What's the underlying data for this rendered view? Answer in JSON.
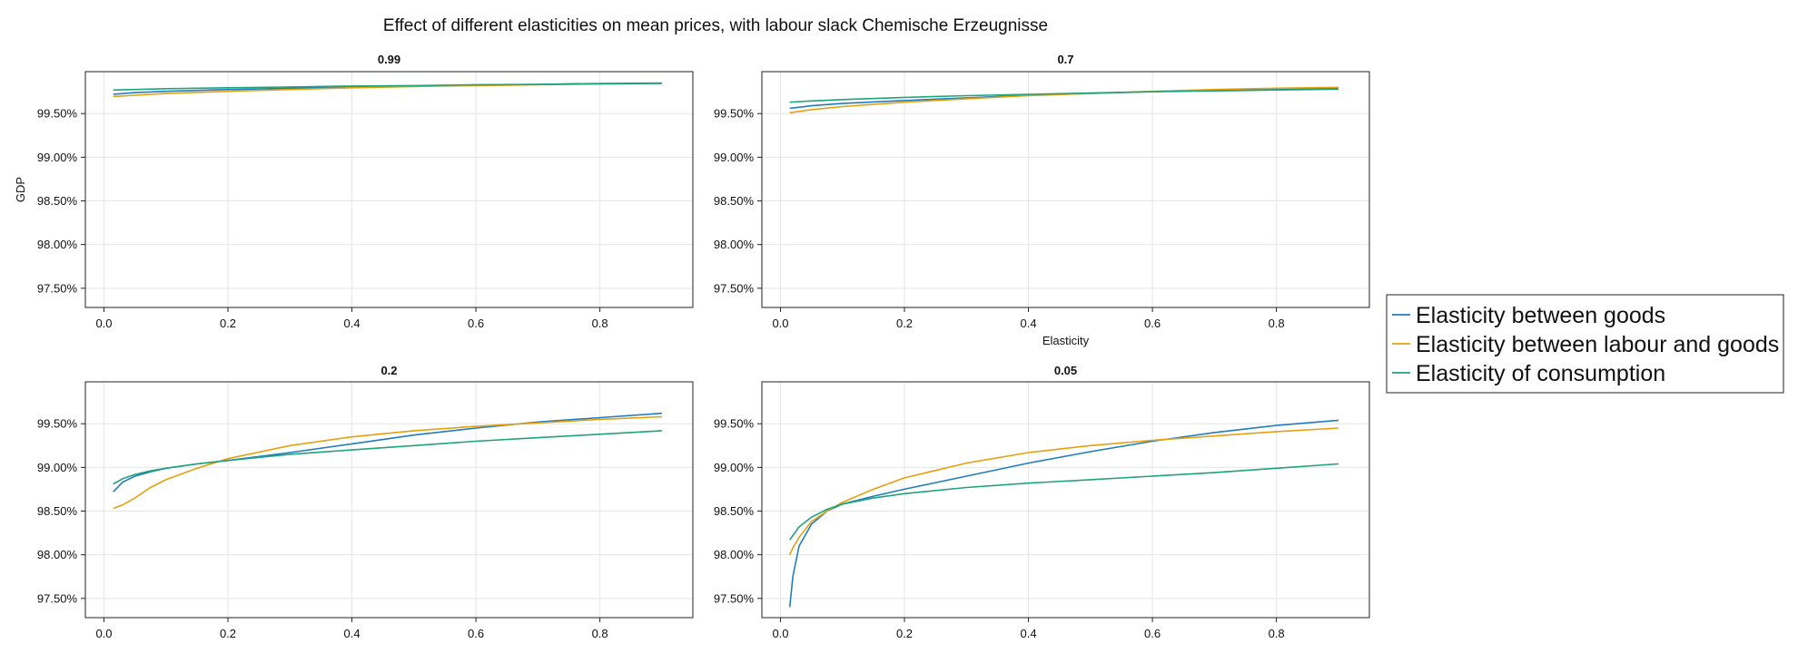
{
  "title": "Effect of different elasticities on mean prices, with labour slack Chemische Erzeugnisse",
  "colors": {
    "Elasticity between goods": "#1f7dbf",
    "Elasticity between labour and goods": "#e6a00f",
    "Elasticity of consumption": "#1fa37a"
  },
  "legend": {
    "position": "right",
    "entries": [
      "Elasticity between goods",
      "Elasticity between labour and goods",
      "Elasticity of consumption"
    ]
  },
  "chart_data": [
    {
      "type": "line",
      "title": "0.99",
      "xlabel": "",
      "ylabel": "GDP",
      "xlim": [
        -0.03,
        0.95
      ],
      "ylim": [
        97.28,
        99.98
      ],
      "xticks": [
        0.0,
        0.2,
        0.4,
        0.6,
        0.8
      ],
      "yticks": [
        97.5,
        98.0,
        98.5,
        99.0,
        99.5
      ],
      "yticklabels": [
        "97.50%",
        "98.00%",
        "98.50%",
        "99.00%",
        "99.50%"
      ],
      "grid": true,
      "x": [
        0.015,
        0.05,
        0.1,
        0.2,
        0.3,
        0.4,
        0.5,
        0.6,
        0.7,
        0.8,
        0.9
      ],
      "series": [
        {
          "name": "Elasticity between goods",
          "values": [
            99.72,
            99.74,
            99.755,
            99.775,
            99.79,
            99.805,
            99.815,
            99.825,
            99.835,
            99.845,
            99.85
          ]
        },
        {
          "name": "Elasticity between labour and goods",
          "values": [
            99.695,
            99.71,
            99.73,
            99.755,
            99.775,
            99.795,
            99.81,
            99.82,
            99.83,
            99.84,
            99.845
          ]
        },
        {
          "name": "Elasticity of consumption",
          "values": [
            99.77,
            99.775,
            99.785,
            99.795,
            99.805,
            99.815,
            99.82,
            99.83,
            99.835,
            99.84,
            99.845
          ]
        }
      ]
    },
    {
      "type": "line",
      "title": "0.7",
      "xlabel": "Elasticity",
      "ylabel": "",
      "xlim": [
        -0.03,
        0.95
      ],
      "ylim": [
        97.28,
        99.98
      ],
      "xticks": [
        0.0,
        0.2,
        0.4,
        0.6,
        0.8
      ],
      "yticks": [
        97.5,
        98.0,
        98.5,
        99.0,
        99.5
      ],
      "yticklabels": [
        "97.50%",
        "98.00%",
        "98.50%",
        "99.00%",
        "99.50%"
      ],
      "grid": true,
      "x": [
        0.015,
        0.05,
        0.1,
        0.2,
        0.3,
        0.4,
        0.5,
        0.6,
        0.7,
        0.8,
        0.9
      ],
      "series": [
        {
          "name": "Elasticity between goods",
          "values": [
            99.56,
            99.59,
            99.615,
            99.65,
            99.68,
            99.71,
            99.73,
            99.75,
            99.765,
            99.78,
            99.79
          ]
        },
        {
          "name": "Elasticity between labour and goods",
          "values": [
            99.51,
            99.545,
            99.58,
            99.63,
            99.67,
            99.705,
            99.73,
            99.755,
            99.775,
            99.79,
            99.8
          ]
        },
        {
          "name": "Elasticity of consumption",
          "values": [
            99.63,
            99.645,
            99.66,
            99.685,
            99.705,
            99.72,
            99.735,
            99.75,
            99.76,
            99.77,
            99.78
          ]
        }
      ]
    },
    {
      "type": "line",
      "title": "0.2",
      "xlabel": "",
      "ylabel": "",
      "xlim": [
        -0.03,
        0.95
      ],
      "ylim": [
        97.28,
        99.98
      ],
      "xticks": [
        0.0,
        0.2,
        0.4,
        0.6,
        0.8
      ],
      "yticks": [
        97.5,
        98.0,
        98.5,
        99.0,
        99.5
      ],
      "yticklabels": [
        "97.50%",
        "98.00%",
        "98.50%",
        "99.00%",
        "99.50%"
      ],
      "grid": true,
      "x": [
        0.015,
        0.03,
        0.05,
        0.075,
        0.1,
        0.15,
        0.2,
        0.3,
        0.4,
        0.5,
        0.6,
        0.7,
        0.8,
        0.9
      ],
      "series": [
        {
          "name": "Elasticity between goods",
          "values": [
            98.72,
            98.83,
            98.9,
            98.95,
            98.99,
            99.04,
            99.08,
            99.17,
            99.27,
            99.37,
            99.45,
            99.52,
            99.57,
            99.62
          ]
        },
        {
          "name": "Elasticity between labour and goods",
          "values": [
            98.53,
            98.57,
            98.65,
            98.77,
            98.86,
            98.99,
            99.1,
            99.25,
            99.35,
            99.42,
            99.47,
            99.51,
            99.55,
            99.58
          ]
        },
        {
          "name": "Elasticity of consumption",
          "values": [
            98.81,
            98.87,
            98.92,
            98.96,
            98.99,
            99.04,
            99.08,
            99.15,
            99.2,
            99.25,
            99.3,
            99.34,
            99.38,
            99.42
          ]
        }
      ]
    },
    {
      "type": "line",
      "title": "0.05",
      "xlabel": "",
      "ylabel": "",
      "xlim": [
        -0.03,
        0.95
      ],
      "ylim": [
        97.28,
        99.98
      ],
      "xticks": [
        0.0,
        0.2,
        0.4,
        0.6,
        0.8
      ],
      "yticks": [
        97.5,
        98.0,
        98.5,
        99.0,
        99.5
      ],
      "yticklabels": [
        "97.50%",
        "98.00%",
        "98.50%",
        "99.00%",
        "99.50%"
      ],
      "grid": true,
      "x": [
        0.015,
        0.02,
        0.03,
        0.05,
        0.075,
        0.1,
        0.15,
        0.2,
        0.3,
        0.4,
        0.5,
        0.6,
        0.7,
        0.8,
        0.9
      ],
      "series": [
        {
          "name": "Elasticity between goods",
          "values": [
            97.4,
            97.75,
            98.1,
            98.35,
            98.5,
            98.58,
            98.67,
            98.75,
            98.9,
            99.05,
            99.18,
            99.3,
            99.4,
            99.48,
            99.54
          ]
        },
        {
          "name": "Elasticity between labour and goods",
          "values": [
            98.0,
            98.08,
            98.2,
            98.38,
            98.5,
            98.6,
            98.75,
            98.88,
            99.05,
            99.17,
            99.25,
            99.31,
            99.36,
            99.41,
            99.45
          ]
        },
        {
          "name": "Elasticity of consumption",
          "values": [
            98.17,
            98.22,
            98.32,
            98.43,
            98.52,
            98.58,
            98.65,
            98.7,
            98.77,
            98.82,
            98.86,
            98.9,
            98.94,
            98.99,
            99.04
          ]
        }
      ]
    }
  ]
}
